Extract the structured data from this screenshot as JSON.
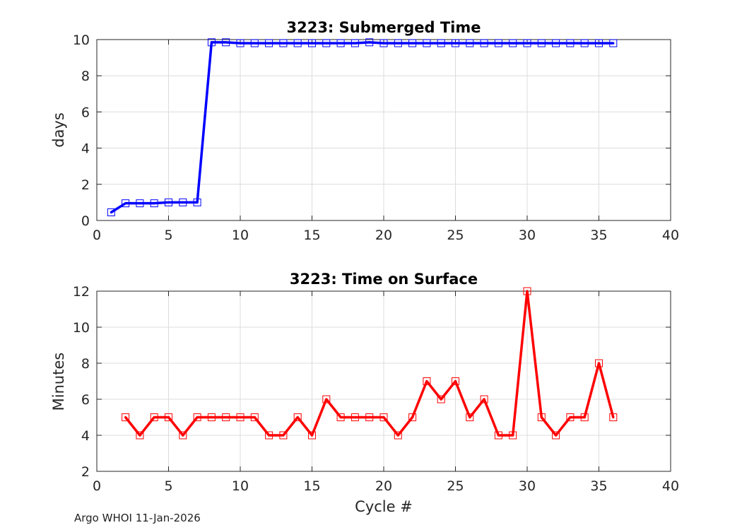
{
  "footer": "Argo WHOI 11-Jan-2026",
  "chart_data": [
    {
      "type": "line",
      "title": "3223: Submerged Time",
      "xlabel": "",
      "ylabel": "days",
      "xlim": [
        0,
        40
      ],
      "ylim": [
        0,
        10
      ],
      "xticks": [
        "0",
        "5",
        "10",
        "15",
        "20",
        "25",
        "30",
        "35",
        "40"
      ],
      "yticks": [
        "0",
        "2",
        "4",
        "6",
        "8",
        "10"
      ],
      "grid": true,
      "color": "#0000ff",
      "marker": "square",
      "x": [
        1,
        2,
        3,
        4,
        5,
        6,
        7,
        8,
        9,
        10,
        11,
        12,
        13,
        14,
        15,
        16,
        17,
        18,
        19,
        20,
        21,
        22,
        23,
        24,
        25,
        26,
        27,
        28,
        29,
        30,
        31,
        32,
        33,
        34,
        35,
        36
      ],
      "values": [
        0.45,
        0.95,
        0.95,
        0.95,
        1.0,
        1.0,
        1.0,
        9.85,
        9.85,
        9.8,
        9.8,
        9.8,
        9.8,
        9.8,
        9.8,
        9.8,
        9.8,
        9.8,
        9.85,
        9.8,
        9.8,
        9.8,
        9.8,
        9.8,
        9.8,
        9.8,
        9.8,
        9.8,
        9.8,
        9.8,
        9.8,
        9.8,
        9.8,
        9.8,
        9.8,
        9.8
      ]
    },
    {
      "type": "line",
      "title": "3223: Time on Surface",
      "xlabel": "Cycle #",
      "ylabel": "Minutes",
      "xlim": [
        0,
        40
      ],
      "ylim": [
        2,
        12
      ],
      "xticks": [
        "0",
        "5",
        "10",
        "15",
        "20",
        "25",
        "30",
        "35",
        "40"
      ],
      "yticks": [
        "2",
        "4",
        "6",
        "8",
        "10",
        "12"
      ],
      "grid": true,
      "color": "#ff0000",
      "marker": "square",
      "x": [
        2,
        3,
        4,
        5,
        6,
        7,
        8,
        9,
        10,
        11,
        12,
        13,
        14,
        15,
        16,
        17,
        18,
        19,
        20,
        21,
        22,
        23,
        24,
        25,
        26,
        27,
        28,
        29,
        30,
        31,
        32,
        33,
        34,
        35,
        36
      ],
      "values": [
        5,
        4,
        5,
        5,
        4,
        5,
        5,
        5,
        5,
        5,
        4,
        4,
        5,
        4,
        6,
        5,
        5,
        5,
        5,
        4,
        5,
        7,
        6,
        7,
        5,
        6,
        4,
        4,
        12,
        5,
        4,
        5,
        5,
        8,
        5
      ]
    }
  ]
}
